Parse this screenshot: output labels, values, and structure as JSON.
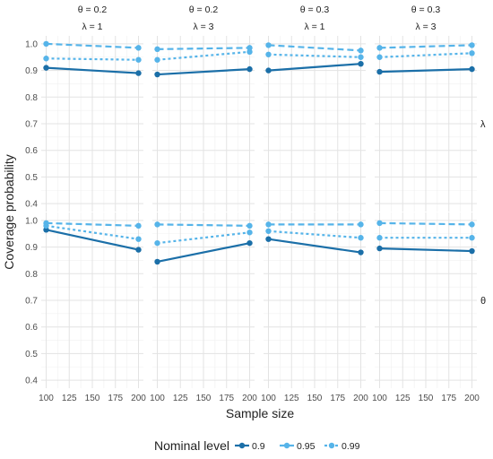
{
  "chart_data": {
    "type": "line",
    "xlabel": "Sample size",
    "ylabel": "Coverage probability",
    "xlim": [
      100,
      200
    ],
    "ylim": [
      0.37,
      1.03
    ],
    "x_ticks": [
      100,
      125,
      150,
      175,
      200
    ],
    "x_tick_labels": [
      "100",
      "125",
      "150",
      "175",
      "200"
    ],
    "y_ticks": [
      0.4,
      0.5,
      0.6,
      0.7,
      0.8,
      0.9,
      1.0
    ],
    "y_tick_labels": [
      "0.4",
      "0.5",
      "0.6",
      "0.7",
      "0.8",
      "0.9",
      "1.0"
    ],
    "grid": true,
    "legend": {
      "title": "Nominal level",
      "placement": "bottom",
      "entries": [
        "0.9",
        "0.95",
        "0.99"
      ]
    },
    "series_styles": [
      {
        "name": "0.9",
        "color": "#1b6fa8",
        "dash": "solid"
      },
      {
        "name": "0.95",
        "color": "#56b4e9",
        "dash": "dashed"
      },
      {
        "name": "0.99",
        "color": "#56b4e9",
        "dash": "dotted"
      }
    ],
    "col_strips": [
      {
        "line1": "θ = 0.2",
        "line2": "λ = 1"
      },
      {
        "line1": "θ = 0.2",
        "line2": "λ = 3"
      },
      {
        "line1": "θ = 0.3",
        "line2": "λ = 1"
      },
      {
        "line1": "θ = 0.3",
        "line2": "λ = 3"
      }
    ],
    "row_strips": [
      "λ",
      "θ"
    ],
    "x": [
      100,
      200
    ],
    "panels": [
      {
        "row": 0,
        "col": 0,
        "series": [
          {
            "name": "0.9",
            "values": [
              0.91,
              0.89
            ]
          },
          {
            "name": "0.95",
            "values": [
              1.0,
              0.985
            ]
          },
          {
            "name": "0.99",
            "values": [
              0.945,
              0.94
            ]
          }
        ]
      },
      {
        "row": 0,
        "col": 1,
        "series": [
          {
            "name": "0.9",
            "values": [
              0.885,
              0.905
            ]
          },
          {
            "name": "0.95",
            "values": [
              0.98,
              0.985
            ]
          },
          {
            "name": "0.99",
            "values": [
              0.94,
              0.97
            ]
          }
        ]
      },
      {
        "row": 0,
        "col": 2,
        "series": [
          {
            "name": "0.9",
            "values": [
              0.9,
              0.925
            ]
          },
          {
            "name": "0.95",
            "values": [
              0.995,
              0.975
            ]
          },
          {
            "name": "0.99",
            "values": [
              0.96,
              0.95
            ]
          }
        ]
      },
      {
        "row": 0,
        "col": 3,
        "series": [
          {
            "name": "0.9",
            "values": [
              0.895,
              0.905
            ]
          },
          {
            "name": "0.95",
            "values": [
              0.985,
              0.995
            ]
          },
          {
            "name": "0.99",
            "values": [
              0.95,
              0.965
            ]
          }
        ]
      },
      {
        "row": 1,
        "col": 0,
        "series": [
          {
            "name": "0.9",
            "values": [
              0.965,
              0.89
            ]
          },
          {
            "name": "0.95",
            "values": [
              0.99,
              0.98
            ]
          },
          {
            "name": "0.99",
            "values": [
              0.98,
              0.93
            ]
          }
        ]
      },
      {
        "row": 1,
        "col": 1,
        "series": [
          {
            "name": "0.9",
            "values": [
              0.845,
              0.915
            ]
          },
          {
            "name": "0.95",
            "values": [
              0.985,
              0.98
            ]
          },
          {
            "name": "0.99",
            "values": [
              0.915,
              0.955
            ]
          }
        ]
      },
      {
        "row": 1,
        "col": 2,
        "series": [
          {
            "name": "0.9",
            "values": [
              0.93,
              0.88
            ]
          },
          {
            "name": "0.95",
            "values": [
              0.985,
              0.985
            ]
          },
          {
            "name": "0.99",
            "values": [
              0.96,
              0.935
            ]
          }
        ]
      },
      {
        "row": 1,
        "col": 3,
        "series": [
          {
            "name": "0.9",
            "values": [
              0.895,
              0.885
            ]
          },
          {
            "name": "0.95",
            "values": [
              0.99,
              0.985
            ]
          },
          {
            "name": "0.99",
            "values": [
              0.935,
              0.935
            ]
          }
        ]
      }
    ]
  }
}
